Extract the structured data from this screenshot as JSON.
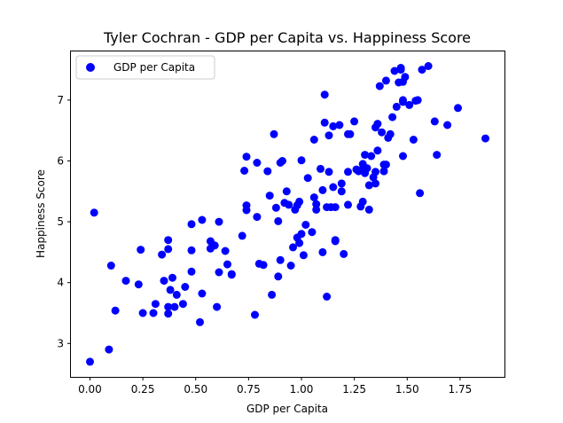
{
  "chart_data": {
    "type": "scatter",
    "title": "Tyler Cochran - GDP per Capita vs. Happiness Score",
    "xlabel": "GDP per Capita",
    "ylabel": "Happiness Score",
    "xlim": [
      -0.09,
      1.96
    ],
    "ylim": [
      2.45,
      7.8
    ],
    "xticks": [
      0.0,
      0.25,
      0.5,
      0.75,
      1.0,
      1.25,
      1.5,
      1.75
    ],
    "xtick_labels": [
      "0.00",
      "0.25",
      "0.50",
      "0.75",
      "1.00",
      "1.25",
      "1.50",
      "1.75"
    ],
    "yticks": [
      3,
      4,
      5,
      6,
      7
    ],
    "ytick_labels": [
      "3",
      "4",
      "5",
      "6",
      "7"
    ],
    "grid": false,
    "legend_position": "top-left",
    "series": [
      {
        "name": "GDP per Capita",
        "color": "#0000ff",
        "marker": "circle",
        "points": [
          [
            0.0,
            2.7
          ],
          [
            0.02,
            5.15
          ],
          [
            0.09,
            2.9
          ],
          [
            0.1,
            4.28
          ],
          [
            0.12,
            3.54
          ],
          [
            0.17,
            4.03
          ],
          [
            0.23,
            3.97
          ],
          [
            0.24,
            4.54
          ],
          [
            0.25,
            3.5
          ],
          [
            0.3,
            3.5
          ],
          [
            0.31,
            3.65
          ],
          [
            0.34,
            4.46
          ],
          [
            0.35,
            4.03
          ],
          [
            0.37,
            4.55
          ],
          [
            0.37,
            4.7
          ],
          [
            0.37,
            3.49
          ],
          [
            0.37,
            3.6
          ],
          [
            0.38,
            3.88
          ],
          [
            0.39,
            4.08
          ],
          [
            0.4,
            3.6
          ],
          [
            0.41,
            3.8
          ],
          [
            0.44,
            3.65
          ],
          [
            0.45,
            3.93
          ],
          [
            0.48,
            4.18
          ],
          [
            0.48,
            4.53
          ],
          [
            0.48,
            4.96
          ],
          [
            0.52,
            3.35
          ],
          [
            0.53,
            3.82
          ],
          [
            0.53,
            5.03
          ],
          [
            0.57,
            4.56
          ],
          [
            0.57,
            4.68
          ],
          [
            0.59,
            4.61
          ],
          [
            0.6,
            3.6
          ],
          [
            0.61,
            5.0
          ],
          [
            0.61,
            4.17
          ],
          [
            0.64,
            4.52
          ],
          [
            0.65,
            4.3
          ],
          [
            0.67,
            4.14
          ],
          [
            0.67,
            4.13
          ],
          [
            0.72,
            4.77
          ],
          [
            0.73,
            5.84
          ],
          [
            0.74,
            6.07
          ],
          [
            0.74,
            5.27
          ],
          [
            0.74,
            5.19
          ],
          [
            0.78,
            3.47
          ],
          [
            0.79,
            5.08
          ],
          [
            0.79,
            5.97
          ],
          [
            0.8,
            4.31
          ],
          [
            0.82,
            4.29
          ],
          [
            0.84,
            5.83
          ],
          [
            0.85,
            5.43
          ],
          [
            0.86,
            3.8
          ],
          [
            0.87,
            6.44
          ],
          [
            0.88,
            5.23
          ],
          [
            0.89,
            4.1
          ],
          [
            0.89,
            5.01
          ],
          [
            0.9,
            4.37
          ],
          [
            0.9,
            5.97
          ],
          [
            0.91,
            6.0
          ],
          [
            0.92,
            5.31
          ],
          [
            0.93,
            5.5
          ],
          [
            0.94,
            5.28
          ],
          [
            0.95,
            4.28
          ],
          [
            0.96,
            4.58
          ],
          [
            0.97,
            5.2
          ],
          [
            0.98,
            5.27
          ],
          [
            0.98,
            4.74
          ],
          [
            0.99,
            5.33
          ],
          [
            0.99,
            4.65
          ],
          [
            1.0,
            6.01
          ],
          [
            1.0,
            4.8
          ],
          [
            1.01,
            4.45
          ],
          [
            1.02,
            4.95
          ],
          [
            1.03,
            5.72
          ],
          [
            1.05,
            4.83
          ],
          [
            1.06,
            5.4
          ],
          [
            1.06,
            6.35
          ],
          [
            1.07,
            5.29
          ],
          [
            1.07,
            5.2
          ],
          [
            1.09,
            5.87
          ],
          [
            1.1,
            5.52
          ],
          [
            1.1,
            4.5
          ],
          [
            1.11,
            6.63
          ],
          [
            1.11,
            7.09
          ],
          [
            1.12,
            5.24
          ],
          [
            1.12,
            3.77
          ],
          [
            1.13,
            6.42
          ],
          [
            1.13,
            5.82
          ],
          [
            1.14,
            5.24
          ],
          [
            1.15,
            6.57
          ],
          [
            1.15,
            5.57
          ],
          [
            1.16,
            5.24
          ],
          [
            1.16,
            4.7
          ],
          [
            1.16,
            4.68
          ],
          [
            1.18,
            6.59
          ],
          [
            1.19,
            5.63
          ],
          [
            1.19,
            5.5
          ],
          [
            1.2,
            4.47
          ],
          [
            1.22,
            6.44
          ],
          [
            1.22,
            5.82
          ],
          [
            1.22,
            5.28
          ],
          [
            1.23,
            6.44
          ],
          [
            1.25,
            6.65
          ],
          [
            1.26,
            5.86
          ],
          [
            1.27,
            5.83
          ],
          [
            1.28,
            5.25
          ],
          [
            1.29,
            5.95
          ],
          [
            1.29,
            5.33
          ],
          [
            1.29,
            5.87
          ],
          [
            1.3,
            5.8
          ],
          [
            1.3,
            6.1
          ],
          [
            1.31,
            5.88
          ],
          [
            1.32,
            5.2
          ],
          [
            1.32,
            5.6
          ],
          [
            1.33,
            6.08
          ],
          [
            1.34,
            5.73
          ],
          [
            1.35,
            5.82
          ],
          [
            1.35,
            5.63
          ],
          [
            1.35,
            6.55
          ],
          [
            1.36,
            6.61
          ],
          [
            1.36,
            6.17
          ],
          [
            1.37,
            7.23
          ],
          [
            1.38,
            6.47
          ],
          [
            1.39,
            5.94
          ],
          [
            1.39,
            5.83
          ],
          [
            1.4,
            7.32
          ],
          [
            1.4,
            5.94
          ],
          [
            1.41,
            6.38
          ],
          [
            1.42,
            6.44
          ],
          [
            1.43,
            6.72
          ],
          [
            1.44,
            7.48
          ],
          [
            1.45,
            6.89
          ],
          [
            1.46,
            7.29
          ],
          [
            1.47,
            7.53
          ],
          [
            1.47,
            7.5
          ],
          [
            1.48,
            7.3
          ],
          [
            1.48,
            6.97
          ],
          [
            1.48,
            7.0
          ],
          [
            1.48,
            6.08
          ],
          [
            1.49,
            7.38
          ],
          [
            1.51,
            6.92
          ],
          [
            1.53,
            6.35
          ],
          [
            1.54,
            6.99
          ],
          [
            1.55,
            7.0
          ],
          [
            1.56,
            5.47
          ],
          [
            1.57,
            7.5
          ],
          [
            1.6,
            7.56
          ],
          [
            1.63,
            6.65
          ],
          [
            1.64,
            6.1
          ],
          [
            1.69,
            6.59
          ],
          [
            1.74,
            6.87
          ],
          [
            1.87,
            6.37
          ]
        ]
      }
    ]
  }
}
